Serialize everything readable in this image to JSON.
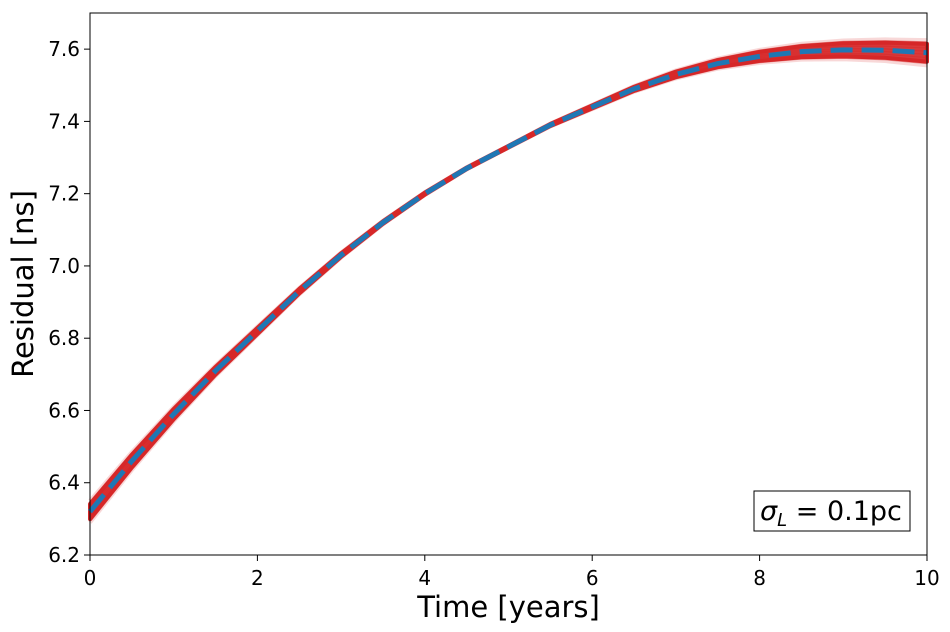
{
  "chart_data": {
    "type": "line",
    "xlabel": "Time [years]",
    "ylabel": "Residual [ns]",
    "xlim": [
      0,
      10
    ],
    "ylim": [
      6.2,
      7.7
    ],
    "x_ticks": [
      "0",
      "2",
      "4",
      "6",
      "8",
      "10"
    ],
    "y_ticks": [
      "6.2",
      "6.4",
      "6.6",
      "6.8",
      "7.0",
      "7.2",
      "7.4",
      "7.6"
    ],
    "grid": false,
    "annotation": {
      "symbol": "σ",
      "subscript": "L",
      "rest": " = 0.1pc",
      "position": "bottom-right"
    },
    "series": [
      {
        "style": "dashed",
        "color": "#1f77b4",
        "x": [
          0,
          0.5,
          1,
          1.5,
          2,
          2.5,
          3,
          3.5,
          4,
          4.5,
          5,
          5.5,
          6,
          6.5,
          7,
          7.5,
          8,
          8.5,
          9,
          9.5,
          10
        ],
        "y": [
          6.32,
          6.46,
          6.59,
          6.71,
          6.82,
          6.93,
          7.03,
          7.12,
          7.2,
          7.27,
          7.33,
          7.39,
          7.44,
          7.49,
          7.53,
          7.56,
          7.58,
          7.593,
          7.598,
          7.597,
          7.59
        ]
      }
    ],
    "band": {
      "color": "#d62728",
      "halfwidth": [
        0.03,
        0.025,
        0.02,
        0.015,
        0.012,
        0.009,
        0.007,
        0.005,
        0.004,
        0.003,
        0.003,
        0.004,
        0.006,
        0.008,
        0.011,
        0.014,
        0.018,
        0.022,
        0.026,
        0.03,
        0.035
      ]
    }
  }
}
